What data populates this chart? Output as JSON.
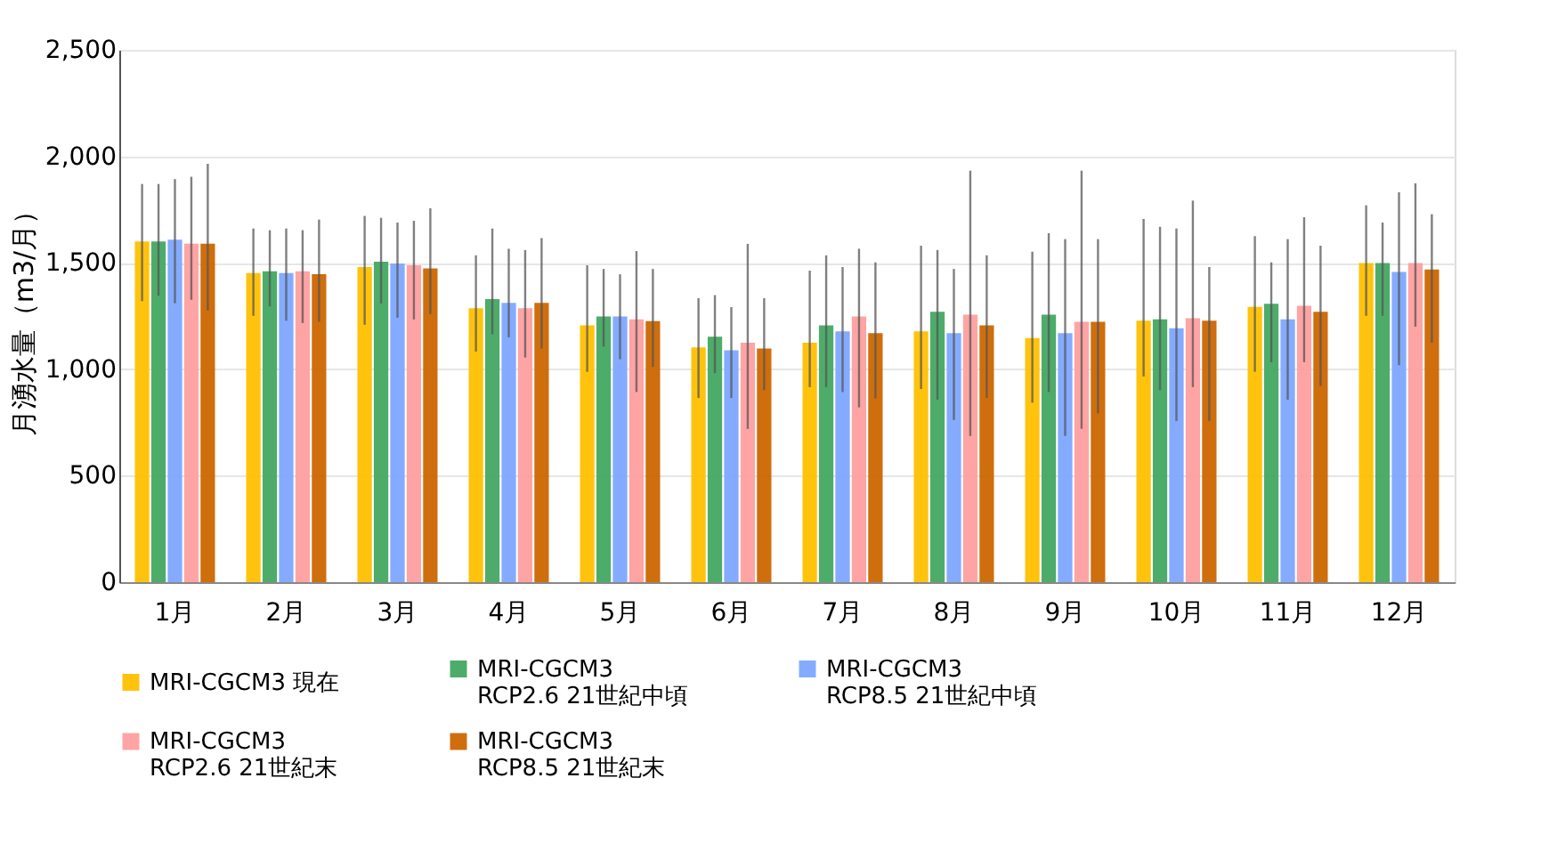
{
  "chart_data": {
    "type": "bar",
    "ylabel": "月湧水量（m3/月）",
    "categories": [
      "1月",
      "2月",
      "3月",
      "4月",
      "5月",
      "6月",
      "7月",
      "8月",
      "9月",
      "10月",
      "11月",
      "12月"
    ],
    "ylim": [
      0,
      2500
    ],
    "yticks": [
      {
        "value": 0,
        "label": "0"
      },
      {
        "value": 500,
        "label": "500"
      },
      {
        "value": 1000,
        "label": "1,000"
      },
      {
        "value": 1500,
        "label": "1,500"
      },
      {
        "value": 2000,
        "label": "2,000"
      },
      {
        "value": 2500,
        "label": "2,500"
      }
    ],
    "grid": "y",
    "legend": "bottom",
    "series": [
      {
        "name": "MRI-CGCM3 現在",
        "color": "#ffc000",
        "values": [
          1600,
          1452,
          1480,
          1287,
          1206,
          1103,
          1125,
          1178,
          1147,
          1228,
          1293,
          1499
        ],
        "errors": [
          [
            1320,
            1870
          ],
          [
            1251,
            1661
          ],
          [
            1209,
            1720
          ],
          [
            1083,
            1535
          ],
          [
            988,
            1488
          ],
          [
            865,
            1334
          ],
          [
            916,
            1463
          ],
          [
            907,
            1580
          ],
          [
            843,
            1552
          ],
          [
            966,
            1706
          ],
          [
            988,
            1625
          ],
          [
            1251,
            1770
          ]
        ]
      },
      {
        "name": "MRI-CGCM3\nRCP2.6 21世紀中頃",
        "color": "#43a862",
        "values": [
          1600,
          1460,
          1505,
          1329,
          1248,
          1153,
          1206,
          1270,
          1256,
          1234,
          1307,
          1499
        ],
        "errors": [
          [
            1345,
            1870
          ],
          [
            1295,
            1653
          ],
          [
            1309,
            1711
          ],
          [
            1164,
            1661
          ],
          [
            1106,
            1471
          ],
          [
            982,
            1348
          ],
          [
            916,
            1535
          ],
          [
            857,
            1560
          ],
          [
            893,
            1639
          ],
          [
            902,
            1669
          ],
          [
            1033,
            1502
          ],
          [
            1251,
            1689
          ]
        ]
      },
      {
        "name": "MRI-CGCM3\nRCP8.5 21世紀中頃",
        "color": "#7da7ff",
        "values": [
          1608,
          1452,
          1497,
          1312,
          1248,
          1089,
          1178,
          1170,
          1170,
          1192,
          1234,
          1457
        ],
        "errors": [
          [
            1310,
            1893
          ],
          [
            1228,
            1661
          ],
          [
            1242,
            1689
          ],
          [
            1150,
            1566
          ],
          [
            1047,
            1446
          ],
          [
            865,
            1292
          ],
          [
            893,
            1480
          ],
          [
            762,
            1471
          ],
          [
            687,
            1611
          ],
          [
            757,
            1661
          ],
          [
            857,
            1611
          ],
          [
            1019,
            1831
          ]
        ]
      },
      {
        "name": "MRI-CGCM3\nRCP2.6 21世紀末",
        "color": "#ff9f9f",
        "values": [
          1590,
          1460,
          1488,
          1287,
          1234,
          1125,
          1248,
          1256,
          1223,
          1240,
          1298,
          1499
        ],
        "errors": [
          [
            1326,
            1904
          ],
          [
            1217,
            1653
          ],
          [
            1234,
            1697
          ],
          [
            1055,
            1560
          ],
          [
            893,
            1555
          ],
          [
            720,
            1589
          ],
          [
            821,
            1566
          ],
          [
            687,
            1932
          ],
          [
            720,
            1932
          ],
          [
            916,
            1792
          ],
          [
            1033,
            1714
          ],
          [
            1200,
            1873
          ]
        ]
      },
      {
        "name": "MRI-CGCM3\nRCP8.5 21世紀末",
        "color": "#cc6600",
        "values": [
          1590,
          1446,
          1474,
          1312,
          1226,
          1097,
          1170,
          1206,
          1223,
          1228,
          1270,
          1468
        ],
        "errors": [
          [
            1276,
            1965
          ],
          [
            1223,
            1703
          ],
          [
            1259,
            1756
          ],
          [
            1097,
            1616
          ],
          [
            1011,
            1471
          ],
          [
            902,
            1334
          ],
          [
            863,
            1502
          ],
          [
            865,
            1535
          ],
          [
            793,
            1611
          ],
          [
            757,
            1480
          ],
          [
            921,
            1580
          ],
          [
            1125,
            1728
          ]
        ]
      }
    ]
  }
}
